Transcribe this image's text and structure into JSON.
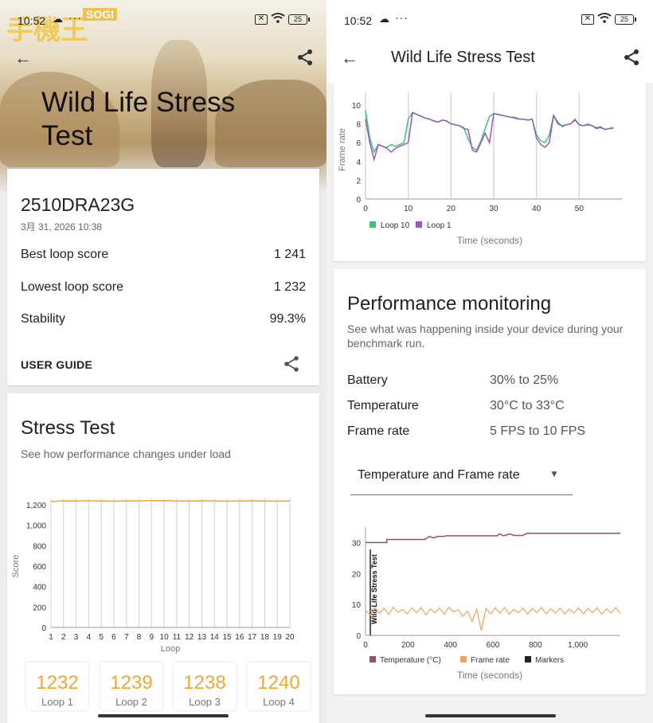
{
  "status": {
    "time": "10:52",
    "dots": "···",
    "battery": "25"
  },
  "left": {
    "watermark": "SOGI",
    "watermark_logo": "手機王",
    "hero_title": "Wild Life Stress Test",
    "device_name": "2510DRA23G",
    "date": "3月 31, 2026 10:38",
    "rows": [
      {
        "label": "Best loop score",
        "value": "1 241"
      },
      {
        "label": "Lowest loop score",
        "value": "1 232"
      },
      {
        "label": "Stability",
        "value": "99.3%"
      }
    ],
    "user_guide": "USER GUIDE",
    "stress_title": "Stress Test",
    "stress_sub": "See how performance changes under load",
    "loops": [
      {
        "value": "1232",
        "label": "Loop 1"
      },
      {
        "value": "1239",
        "label": "Loop 2"
      },
      {
        "value": "1238",
        "label": "Loop 3"
      },
      {
        "value": "1240",
        "label": "Loop 4"
      }
    ]
  },
  "right": {
    "title": "Wild Life Stress Test",
    "pm_title": "Performance monitoring",
    "pm_sub": "See what was happening inside your device during your benchmark run.",
    "rows": [
      {
        "label": "Battery",
        "value": "30% to 25%"
      },
      {
        "label": "Temperature",
        "value": "30°C to 33°C"
      },
      {
        "label": "Frame rate",
        "value": "5 FPS to 10 FPS"
      }
    ],
    "select": "Temperature and Frame rate"
  },
  "chart_data": [
    {
      "type": "line",
      "ylabel": "Score",
      "xlabel": "Loop",
      "x": [
        1,
        2,
        3,
        4,
        5,
        6,
        7,
        8,
        9,
        10,
        11,
        12,
        13,
        14,
        15,
        16,
        17,
        18,
        19,
        20
      ],
      "ylim": [
        0,
        1200
      ],
      "yticks": [
        "0",
        "200",
        "400",
        "600",
        "800",
        "1,000",
        "1,200"
      ],
      "series": [
        {
          "values": [
            1232,
            1239,
            1238,
            1240,
            1238,
            1236,
            1238,
            1239,
            1240,
            1241,
            1238,
            1237,
            1239,
            1238,
            1236,
            1238,
            1239,
            1237,
            1236,
            1238
          ]
        }
      ],
      "color": "#f0a830"
    },
    {
      "type": "line",
      "ylabel": "Frame rate",
      "xlabel": "Time (seconds)",
      "xticks": [
        "0",
        "10",
        "20",
        "30",
        "40",
        "50"
      ],
      "yticks": [
        "0",
        "2",
        "4",
        "6",
        "8",
        "10"
      ],
      "ylim": [
        0,
        10
      ],
      "series": [
        {
          "name": "Loop 10",
          "color": "#3cc47a",
          "points": [
            [
              0,
              9.4
            ],
            [
              1,
              6.5
            ],
            [
              2,
              5.0
            ],
            [
              3,
              5.8
            ],
            [
              4,
              5.6
            ],
            [
              5,
              5.5
            ],
            [
              6,
              5.8
            ],
            [
              7,
              5.6
            ],
            [
              8,
              5.8
            ],
            [
              9,
              6.0
            ],
            [
              10,
              8.5
            ],
            [
              11,
              9.2
            ],
            [
              12,
              9.0
            ],
            [
              13,
              8.8
            ],
            [
              14,
              8.6
            ],
            [
              15,
              8.5
            ],
            [
              16,
              8.3
            ],
            [
              17,
              8.2
            ],
            [
              18,
              8.4
            ],
            [
              19,
              8.3
            ],
            [
              20,
              8.0
            ],
            [
              21,
              7.9
            ],
            [
              22,
              7.8
            ],
            [
              23,
              7.6
            ],
            [
              24,
              6.4
            ],
            [
              25,
              5.5
            ],
            [
              26,
              5.2
            ],
            [
              27,
              6.2
            ],
            [
              28,
              7.5
            ],
            [
              29,
              8.8
            ],
            [
              30,
              9.1
            ],
            [
              31,
              9.0
            ],
            [
              32,
              8.9
            ],
            [
              33,
              8.8
            ],
            [
              34,
              8.7
            ],
            [
              35,
              8.7
            ],
            [
              36,
              8.5
            ],
            [
              37,
              8.5
            ],
            [
              38,
              8.4
            ],
            [
              39,
              8.5
            ],
            [
              40,
              6.8
            ],
            [
              41,
              6.2
            ],
            [
              42,
              6.0
            ],
            [
              43,
              6.8
            ],
            [
              44,
              8.9
            ],
            [
              45,
              8.2
            ],
            [
              46,
              7.7
            ],
            [
              47,
              7.9
            ],
            [
              48,
              8.0
            ],
            [
              49,
              8.5
            ],
            [
              50,
              7.9
            ],
            [
              51,
              7.8
            ],
            [
              52,
              8.0
            ],
            [
              53,
              7.8
            ],
            [
              54,
              7.6
            ],
            [
              55,
              7.7
            ],
            [
              56,
              7.4
            ],
            [
              57,
              7.5
            ],
            [
              58,
              7.5
            ]
          ]
        },
        {
          "name": "Loop 1",
          "color": "#9b59b6",
          "points": [
            [
              0,
              8.5
            ],
            [
              1,
              6.0
            ],
            [
              2,
              4.2
            ],
            [
              3,
              5.8
            ],
            [
              4,
              5.6
            ],
            [
              5,
              5.4
            ],
            [
              6,
              5.0
            ],
            [
              7,
              5.4
            ],
            [
              8,
              5.6
            ],
            [
              9,
              5.8
            ],
            [
              10,
              6.0
            ],
            [
              11,
              9.2
            ],
            [
              12,
              9.0
            ],
            [
              13,
              8.8
            ],
            [
              14,
              8.6
            ],
            [
              15,
              8.5
            ],
            [
              16,
              8.3
            ],
            [
              17,
              8.2
            ],
            [
              18,
              8.4
            ],
            [
              19,
              8.3
            ],
            [
              20,
              8.0
            ],
            [
              21,
              7.9
            ],
            [
              22,
              7.8
            ],
            [
              23,
              7.5
            ],
            [
              24,
              7.4
            ],
            [
              25,
              5.2
            ],
            [
              26,
              5.0
            ],
            [
              27,
              6.0
            ],
            [
              28,
              7.0
            ],
            [
              29,
              6.0
            ],
            [
              30,
              9.1
            ],
            [
              31,
              9.0
            ],
            [
              32,
              8.9
            ],
            [
              33,
              8.8
            ],
            [
              34,
              8.7
            ],
            [
              35,
              8.6
            ],
            [
              36,
              8.5
            ],
            [
              37,
              8.5
            ],
            [
              38,
              8.4
            ],
            [
              39,
              8.5
            ],
            [
              40,
              6.5
            ],
            [
              41,
              5.8
            ],
            [
              42,
              5.5
            ],
            [
              43,
              6.0
            ],
            [
              44,
              8.9
            ],
            [
              45,
              8.0
            ],
            [
              46,
              7.8
            ],
            [
              47,
              7.9
            ],
            [
              48,
              8.0
            ],
            [
              49,
              8.4
            ],
            [
              50,
              7.9
            ],
            [
              51,
              7.8
            ],
            [
              52,
              7.9
            ],
            [
              53,
              7.8
            ],
            [
              54,
              7.5
            ],
            [
              55,
              7.6
            ],
            [
              56,
              7.4
            ],
            [
              57,
              7.5
            ],
            [
              58,
              7.6
            ]
          ]
        }
      ]
    },
    {
      "type": "line",
      "xlabel": "Time (seconds)",
      "xticks": [
        "0",
        "200",
        "400",
        "600",
        "800",
        "1,000"
      ],
      "yticks": [
        "0",
        "10",
        "20",
        "30"
      ],
      "xlim": [
        0,
        1200
      ],
      "ylim": [
        0,
        35
      ],
      "annotation": "Wild Life Stress Test",
      "series": [
        {
          "name": "Temperature (°C)",
          "color": "#9a4c6a",
          "points": [
            [
              0,
              30
            ],
            [
              100,
              30
            ],
            [
              100,
              31
            ],
            [
              280,
              31
            ],
            [
              300,
              32
            ],
            [
              320,
              31.5
            ],
            [
              340,
              32
            ],
            [
              370,
              32
            ],
            [
              380,
              32.2
            ],
            [
              620,
              32.2
            ],
            [
              630,
              32.8
            ],
            [
              650,
              32.2
            ],
            [
              680,
              32.8
            ],
            [
              700,
              32.3
            ],
            [
              740,
              32.3
            ],
            [
              760,
              33
            ],
            [
              1200,
              33
            ]
          ]
        },
        {
          "name": "Frame rate",
          "color": "#f5a05a",
          "values": [
            8.2,
            6.5,
            9.0,
            7.2,
            8.8,
            6.8,
            9.1,
            7.5,
            8.4,
            6.9,
            8.9,
            7.3,
            9.0,
            6.7,
            8.5,
            7.4,
            8.8,
            6.9,
            9.1,
            7.6,
            8.3,
            6.2,
            7.9,
            4.5,
            8.5,
            1.5,
            8.7,
            6.9,
            8.9,
            7.2,
            9.0,
            6.8,
            8.4,
            7.3,
            8.9,
            6.9,
            8.7,
            7.4,
            9.0,
            7.0,
            8.6,
            7.2,
            8.8,
            6.9,
            8.5,
            7.3,
            8.9,
            7.0,
            8.7,
            7.4,
            8.9,
            6.8,
            8.6,
            7.3,
            9.0,
            7.1
          ]
        },
        {
          "name": "Markers",
          "color": "#222222"
        }
      ]
    }
  ]
}
